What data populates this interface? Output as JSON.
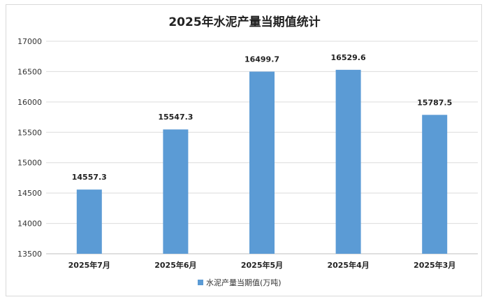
{
  "chart_data": {
    "type": "bar",
    "title": "2025年水泥产量当期值统计",
    "categories": [
      "2025年7月",
      "2025年6月",
      "2025年5月",
      "2025年4月",
      "2025年3月"
    ],
    "series": [
      {
        "name": "水泥产量当期值(万吨)",
        "values": [
          14557.3,
          15547.3,
          16499.7,
          16529.6,
          15787.5
        ],
        "color": "#5b9bd5"
      }
    ],
    "data_labels": [
      "14557.3",
      "15547.3",
      "16499.7",
      "16529.6",
      "15787.5"
    ],
    "ylim": [
      13500,
      17000
    ],
    "yticks": [
      13500,
      14000,
      14500,
      15000,
      15500,
      16000,
      16500,
      17000
    ],
    "grid": true,
    "legend_position": "bottom"
  },
  "colors": {
    "bar": "#5b9bd5",
    "grid": "#dcdcdc"
  }
}
